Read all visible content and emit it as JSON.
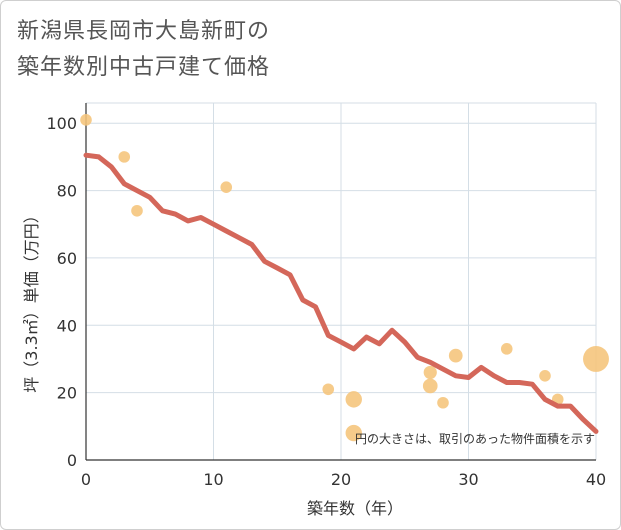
{
  "page": {
    "title_line1": "新潟県長岡市大島新町の",
    "title_line2": "築年数別中古戸建て価格"
  },
  "chart_data": {
    "type": "scatter",
    "title": "新潟県長岡市大島新町の築年数別中古戸建て価格",
    "xlabel": "築年数（年）",
    "ylabel": "坪（3.3㎡）単価（万円）",
    "xlim": [
      0,
      40
    ],
    "ylim": [
      0,
      106
    ],
    "xticks": [
      0,
      10,
      20,
      30,
      40
    ],
    "yticks": [
      0,
      20,
      40,
      60,
      80,
      100
    ],
    "note": "円の大きさは、取引のあった物件面積を示す",
    "colors": {
      "scatter": "#f5c47a",
      "line": "#d4675a",
      "grid": "#d4dee6",
      "axis": "#333333"
    },
    "scatter": [
      {
        "x": 0,
        "y": 101,
        "size": 1
      },
      {
        "x": 3,
        "y": 90,
        "size": 1
      },
      {
        "x": 4,
        "y": 74,
        "size": 1
      },
      {
        "x": 11,
        "y": 81,
        "size": 1
      },
      {
        "x": 19,
        "y": 21,
        "size": 1
      },
      {
        "x": 21,
        "y": 18,
        "size": 2
      },
      {
        "x": 21,
        "y": 8,
        "size": 2
      },
      {
        "x": 27,
        "y": 26,
        "size": 1.3
      },
      {
        "x": 27,
        "y": 22,
        "size": 1.6
      },
      {
        "x": 28,
        "y": 17,
        "size": 1
      },
      {
        "x": 29,
        "y": 31,
        "size": 1.4
      },
      {
        "x": 33,
        "y": 33,
        "size": 1
      },
      {
        "x": 36,
        "y": 25,
        "size": 1
      },
      {
        "x": 37,
        "y": 18,
        "size": 1
      },
      {
        "x": 40,
        "y": 30,
        "size": 5
      }
    ],
    "series": [
      {
        "name": "trend",
        "x": [
          0,
          1,
          2,
          3,
          4,
          5,
          6,
          7,
          8,
          9,
          10,
          11,
          12,
          13,
          14,
          15,
          16,
          17,
          18,
          19,
          20,
          21,
          22,
          23,
          24,
          25,
          26,
          27,
          28,
          29,
          30,
          31,
          32,
          33,
          34,
          35,
          36,
          37,
          38,
          39,
          40
        ],
        "values": [
          90.5,
          90,
          87,
          82,
          80,
          78,
          74,
          73,
          71,
          72,
          70,
          68,
          66,
          64,
          59,
          57,
          55,
          47.5,
          45.5,
          37,
          35,
          33,
          36.5,
          34.5,
          38.5,
          35,
          30.5,
          29,
          27,
          25,
          24.5,
          27.5,
          25,
          23,
          23,
          22.5,
          18,
          16,
          16,
          12,
          8.5
        ]
      }
    ]
  }
}
